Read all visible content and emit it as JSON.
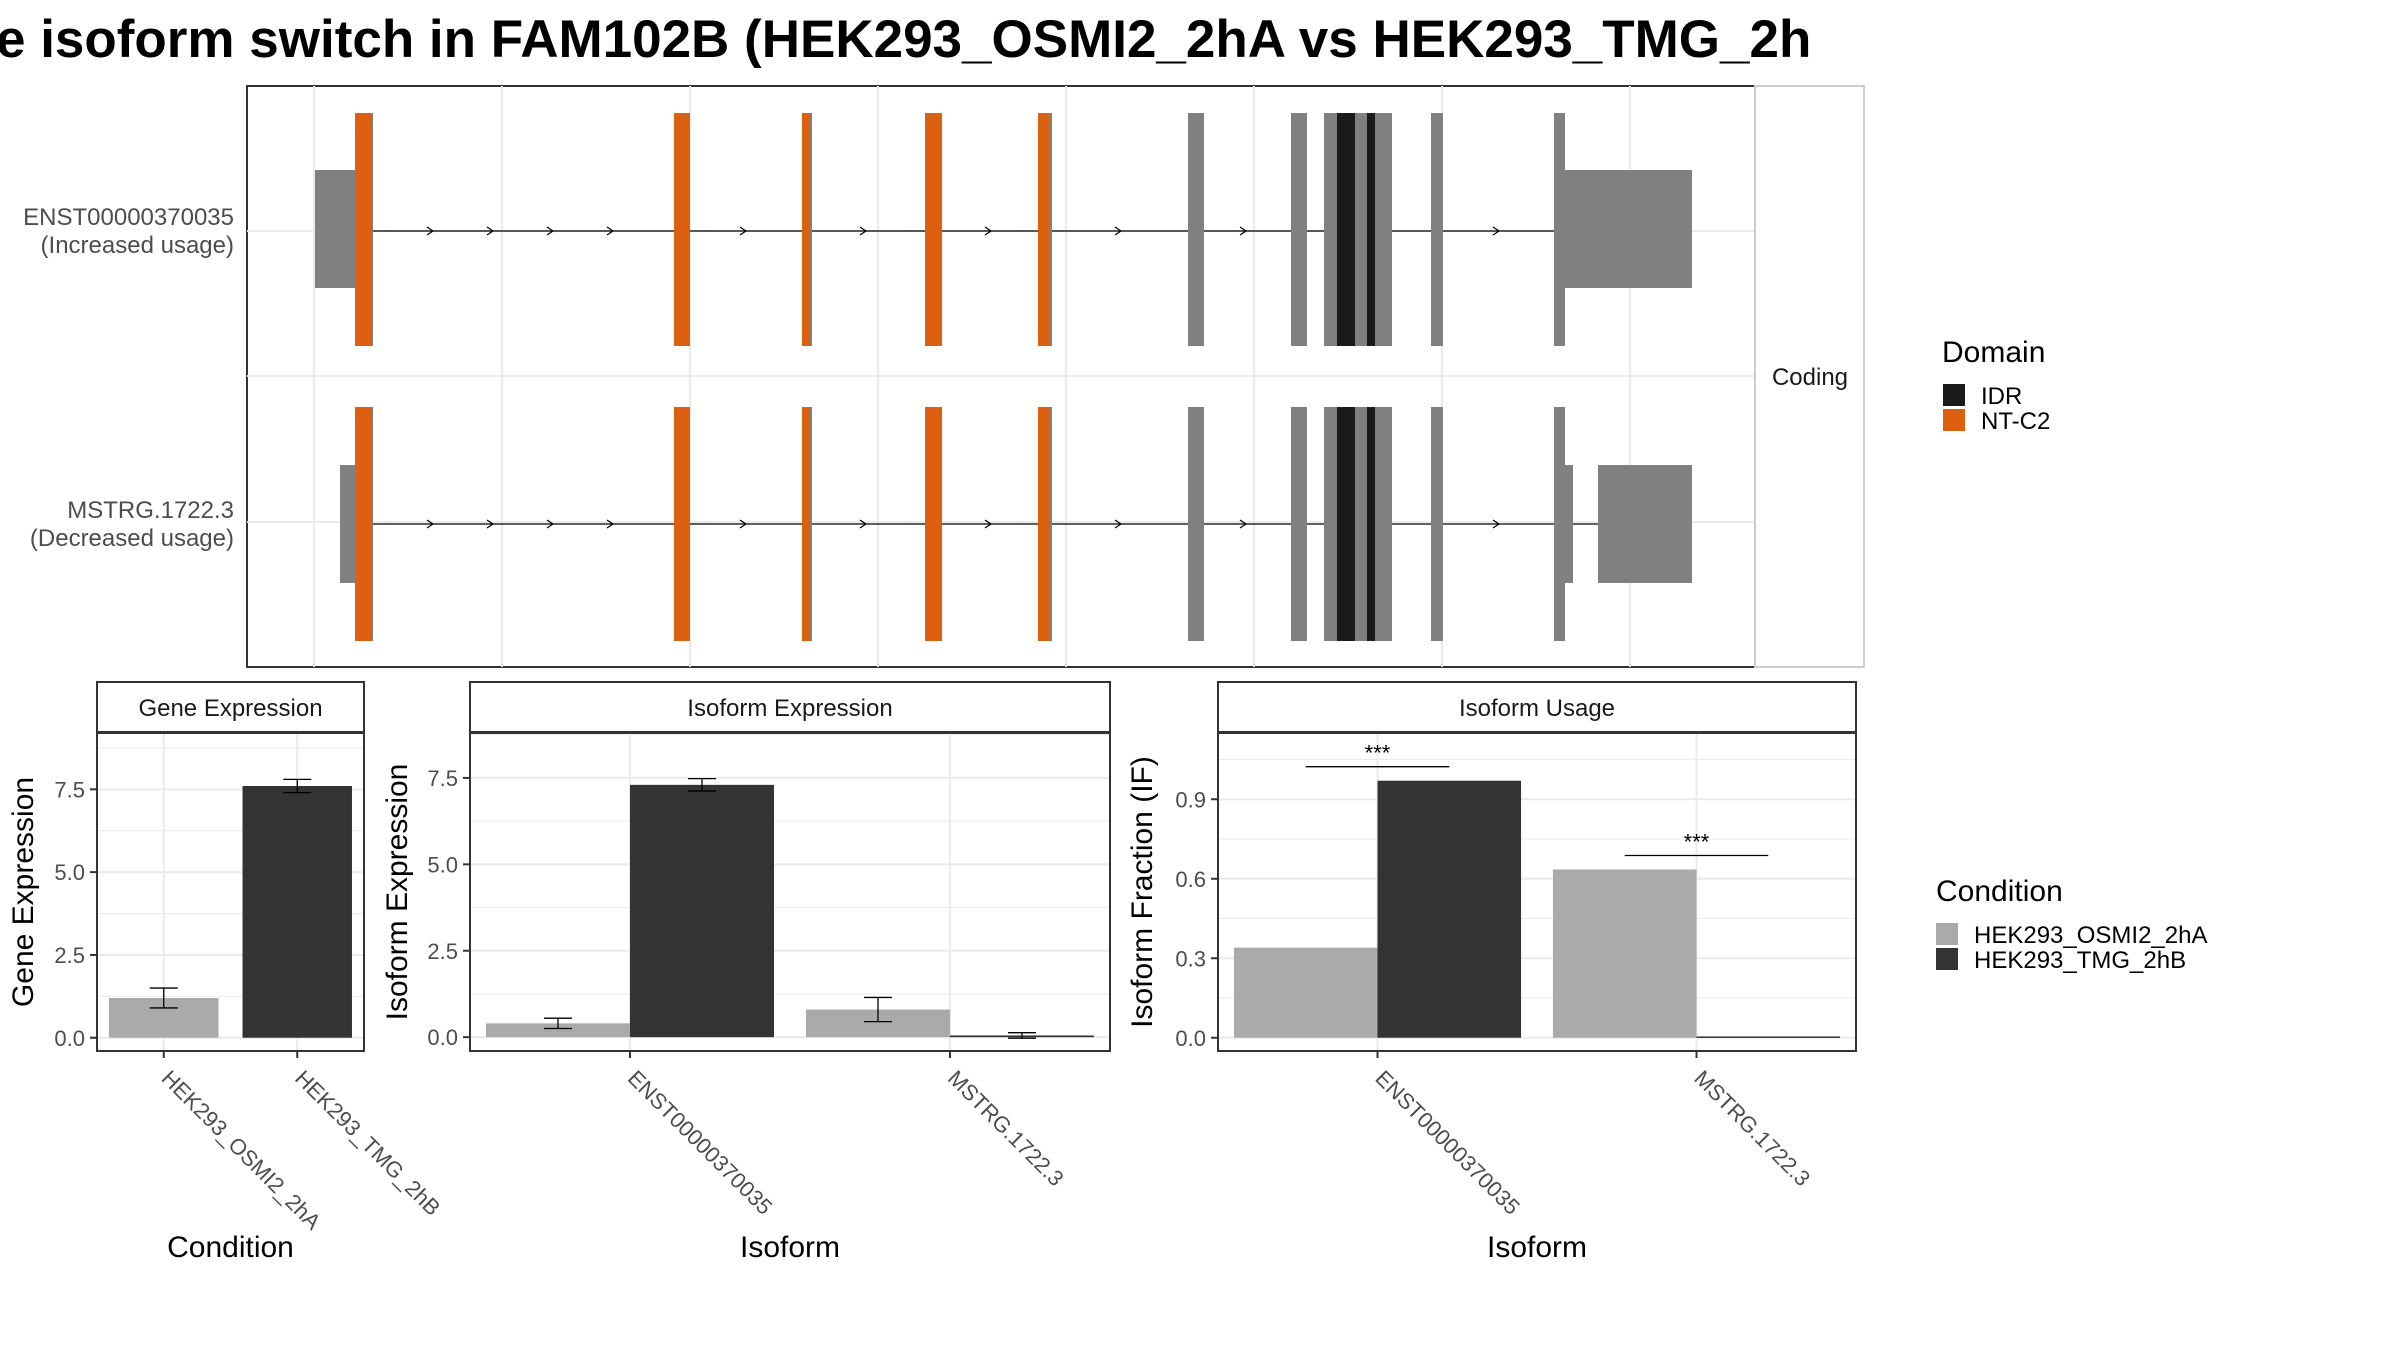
{
  "title": "e isoform switch in FAM102B (HEK293_OSMI2_2hA vs HEK293_TMG_2h",
  "colors": {
    "exon": "#808080",
    "IDR": "#1a1a1a",
    "NT-C2": "#dd6010",
    "HEK293_OSMI2_2hA": "#aaaaaa",
    "HEK293_TMG_2hB": "#333333"
  },
  "structure": {
    "strip_label": "Coding",
    "isoforms": [
      {
        "id": "ENST00000370035",
        "note": "(Increased usage)"
      },
      {
        "id": "MSTRG.1722.3",
        "note": "(Decreased usage)"
      }
    ]
  },
  "domain_legend": {
    "title": "Domain",
    "items": [
      "IDR",
      "NT-C2"
    ]
  },
  "condition_legend": {
    "title": "Condition",
    "items": [
      "HEK293_OSMI2_2hA",
      "HEK293_TMG_2hB"
    ]
  },
  "chart_data": [
    {
      "type": "bar",
      "title": "Gene Expression",
      "xlabel": "Condition",
      "ylabel": "Gene Expression",
      "categories": [
        "HEK293_OSMI2_2hA",
        "HEK293_TMG_2hB"
      ],
      "values": [
        1.2,
        7.6
      ],
      "errors": [
        0.3,
        0.2
      ],
      "ylim": [
        -0.4,
        9.2
      ],
      "yticks": [
        0.0,
        2.5,
        5.0,
        7.5
      ],
      "yticklabels": [
        "0.0",
        "2.5",
        "5.0",
        "7.5"
      ]
    },
    {
      "type": "bar",
      "title": "Isoform Expression",
      "xlabel": "Isoform",
      "ylabel": "Isoform Expression",
      "categories": [
        "ENST00000370035",
        "MSTRG.1722.3"
      ],
      "series": [
        {
          "name": "HEK293_OSMI2_2hA",
          "values": [
            0.4,
            0.8
          ],
          "errors": [
            0.15,
            0.35
          ]
        },
        {
          "name": "HEK293_TMG_2hB",
          "values": [
            7.3,
            0.05
          ],
          "errors": [
            0.18,
            0.08
          ]
        }
      ],
      "ylim": [
        -0.4,
        8.8
      ],
      "yticks": [
        0.0,
        2.5,
        5.0,
        7.5
      ],
      "yticklabels": [
        "0.0",
        "2.5",
        "5.0",
        "7.5"
      ]
    },
    {
      "type": "bar",
      "title": "Isoform Usage",
      "xlabel": "Isoform",
      "ylabel": "Isoform Fraction (IF)",
      "categories": [
        "ENST00000370035",
        "MSTRG.1722.3"
      ],
      "series": [
        {
          "name": "HEK293_OSMI2_2hA",
          "values": [
            0.34,
            0.635
          ]
        },
        {
          "name": "HEK293_TMG_2hB",
          "values": [
            0.97,
            0.005
          ]
        }
      ],
      "significance": [
        "***",
        "***"
      ],
      "ylim": [
        -0.05,
        1.15
      ],
      "yticks": [
        0.0,
        0.3,
        0.6,
        0.9
      ],
      "yticklabels": [
        "0.0",
        "0.3",
        "0.6",
        "0.9"
      ]
    }
  ]
}
